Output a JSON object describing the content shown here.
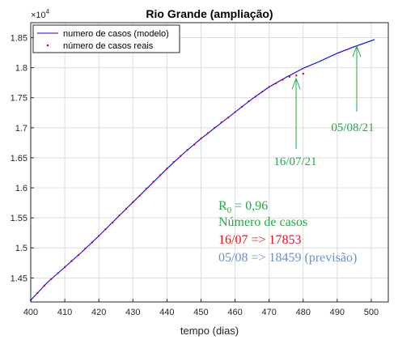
{
  "chart_data": {
    "type": "line",
    "title": "Rio Grande (ampliação)",
    "xlabel": "tempo (dias)",
    "ylabel": "",
    "xlim": [
      400,
      505
    ],
    "ylim": [
      14100,
      18750
    ],
    "y_exponent_label": "×10",
    "y_exponent_power": "4",
    "x_ticks": [
      400,
      410,
      420,
      430,
      440,
      450,
      460,
      470,
      480,
      490,
      500
    ],
    "x_tick_labels": [
      "400",
      "410",
      "420",
      "430",
      "440",
      "450",
      "460",
      "470",
      "480",
      "490",
      "500"
    ],
    "y_ticks": [
      14500,
      15000,
      15500,
      16000,
      16500,
      17000,
      17500,
      18000,
      18500
    ],
    "y_tick_labels": [
      "1.45",
      "1.5",
      "1.55",
      "1.6",
      "1.65",
      "1.7",
      "1.75",
      "1.8",
      "1.85"
    ],
    "grid": true,
    "legend_position": "top-left",
    "series": [
      {
        "name": "numero de casos (modelo)",
        "style": "line",
        "color": "#0000ff",
        "x": [
          400,
          405,
          410,
          415,
          420,
          425,
          430,
          435,
          440,
          445,
          450,
          455,
          460,
          465,
          470,
          475,
          480,
          485,
          490,
          495,
          501
        ],
        "y": [
          14130,
          14430,
          14680,
          14930,
          15200,
          15480,
          15760,
          16040,
          16320,
          16580,
          16820,
          17040,
          17260,
          17480,
          17680,
          17840,
          17990,
          18110,
          18240,
          18350,
          18470
        ]
      },
      {
        "name": "número de casos reais",
        "style": "points",
        "color": "#cc0044",
        "x": [
          400,
          402,
          404,
          406,
          408,
          410,
          412,
          414,
          416,
          418,
          420,
          422,
          424,
          426,
          428,
          430,
          432,
          434,
          436,
          438,
          440,
          442,
          444,
          446,
          448,
          450,
          452,
          454,
          456,
          458,
          460,
          462,
          464,
          466,
          468,
          470,
          472,
          474,
          476,
          478,
          480
        ],
        "y": [
          14130,
          14250,
          14370,
          14480,
          14580,
          14680,
          14780,
          14880,
          14990,
          15090,
          15200,
          15310,
          15420,
          15540,
          15650,
          15760,
          15870,
          15990,
          16100,
          16210,
          16320,
          16430,
          16530,
          16630,
          16720,
          16820,
          16910,
          17000,
          17090,
          17170,
          17260,
          17350,
          17440,
          17520,
          17600,
          17680,
          17740,
          17800,
          17850,
          17870,
          17900
        ]
      }
    ],
    "annotations": [
      {
        "text": "16/07/21",
        "color": "#22aa44",
        "arrow_to": {
          "x": 481,
          "y": 18000
        }
      },
      {
        "text": "05/08/21",
        "color": "#22aa44",
        "arrow_to": {
          "x": 501,
          "y": 18470
        }
      }
    ],
    "info_text": {
      "r0_prefix": "R",
      "r0_sub": "0",
      "r0_value": " = 0,96",
      "heading": "Número de casos",
      "line1": "16/07 => 17853",
      "line2": "05/08 => 18459 (previsão)",
      "colors": {
        "r0": "#22aa44",
        "heading": "#22aa44",
        "line1": "#e8101a",
        "line2": "#6b8fc9"
      }
    }
  }
}
